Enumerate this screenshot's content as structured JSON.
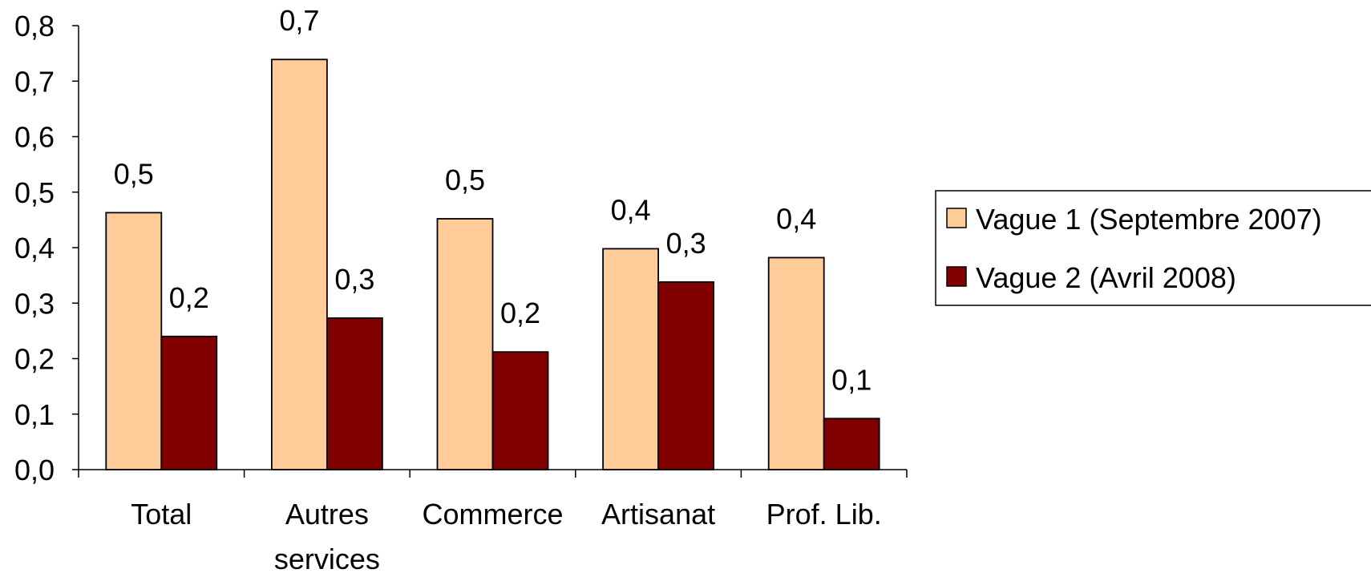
{
  "chart_data": {
    "type": "bar",
    "categories": [
      [
        "Total"
      ],
      [
        "Autres",
        "services"
      ],
      [
        "Commerce"
      ],
      [
        "Artisanat"
      ],
      [
        "Prof. Lib."
      ]
    ],
    "series": [
      {
        "name": "Vague 1 (Septembre 2007)",
        "color": "#FFCC99",
        "values": [
          0.463,
          0.739,
          0.452,
          0.398,
          0.382
        ],
        "labels": [
          "0,5",
          "0,7",
          "0,5",
          "0,4",
          "0,4"
        ]
      },
      {
        "name": "Vague 2 (Avril 2008)",
        "color": "#800000",
        "values": [
          0.24,
          0.273,
          0.212,
          0.338,
          0.092
        ],
        "labels": [
          "0,2",
          "0,3",
          "0,2",
          "0,3",
          "0,1"
        ]
      }
    ],
    "ylim": [
      0,
      0.8
    ],
    "yticks": [
      "0,0",
      "0,1",
      "0,2",
      "0,3",
      "0,4",
      "0,5",
      "0,6",
      "0,7",
      "0,8"
    ],
    "grid": false,
    "legend_position": "right"
  }
}
